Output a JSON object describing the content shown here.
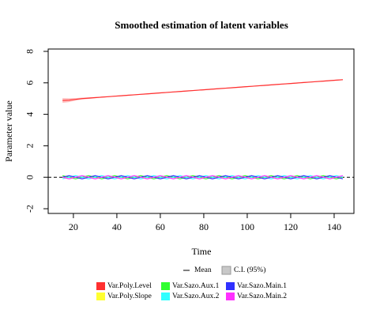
{
  "chart_data": {
    "type": "line",
    "title": "Smoothed estimation of latent variables",
    "xlabel": "Time",
    "ylabel": "Parameter value",
    "xlim": [
      8.4,
      149.1
    ],
    "xticks": [
      20,
      40,
      60,
      80,
      100,
      120,
      140
    ],
    "ylim": [
      -2.3,
      8.15
    ],
    "yticks": [
      -2,
      0,
      2,
      4,
      6,
      8
    ],
    "hline": 0,
    "mean_label": "Mean",
    "ci_label": "C.I. (95%)",
    "ci_color": "#c8c8c8",
    "x": [
      15,
      18,
      21,
      24,
      27,
      30,
      33,
      36,
      39,
      42,
      45,
      48,
      51,
      54,
      57,
      60,
      63,
      66,
      69,
      72,
      75,
      78,
      81,
      84,
      87,
      90,
      93,
      96,
      99,
      102,
      105,
      108,
      111,
      114,
      117,
      120,
      123,
      126,
      129,
      132,
      135,
      138,
      141,
      144
    ],
    "series": [
      {
        "name": "Var.Poly.Level",
        "color": "#ff3030",
        "values": [
          4.88,
          4.9,
          4.95,
          5.0,
          5.03,
          5.06,
          5.09,
          5.12,
          5.15,
          5.18,
          5.21,
          5.24,
          5.27,
          5.3,
          5.33,
          5.36,
          5.39,
          5.42,
          5.45,
          5.48,
          5.51,
          5.54,
          5.57,
          5.6,
          5.63,
          5.66,
          5.69,
          5.72,
          5.75,
          5.78,
          5.81,
          5.84,
          5.87,
          5.9,
          5.93,
          5.96,
          5.99,
          6.02,
          6.05,
          6.08,
          6.11,
          6.14,
          6.17,
          6.2
        ],
        "ci_halfwidth": [
          0.15,
          0.12,
          0.08,
          0.06,
          0.05,
          0.04,
          0.03,
          0.03,
          0.03,
          0.03,
          0.03,
          0.03,
          0.03,
          0.03,
          0.03,
          0.03,
          0.03,
          0.03,
          0.03,
          0.03,
          0.03,
          0.03,
          0.03,
          0.03,
          0.03,
          0.03,
          0.03,
          0.03,
          0.03,
          0.03,
          0.03,
          0.03,
          0.03,
          0.03,
          0.03,
          0.03,
          0.03,
          0.03,
          0.03,
          0.03,
          0.03,
          0.03,
          0.03,
          0.03
        ]
      },
      {
        "name": "Var.Poly.Slope",
        "color": "#ffff30",
        "values": [
          0,
          0,
          0,
          0,
          0,
          0,
          0,
          0,
          0,
          0,
          0,
          0,
          0,
          0,
          0,
          0,
          0,
          0,
          0,
          0,
          0,
          0,
          0,
          0,
          0,
          0,
          0,
          0,
          0,
          0,
          0,
          0,
          0,
          0,
          0,
          0,
          0,
          0,
          0,
          0,
          0,
          0,
          0,
          0
        ]
      },
      {
        "name": "Var.Sazo.Aux.1",
        "color": "#30ff30",
        "values": [
          0.1,
          0,
          -0.1,
          0,
          0.1,
          0,
          -0.1,
          0,
          0.1,
          0,
          -0.1,
          0,
          0.1,
          0,
          -0.1,
          0,
          0.1,
          0,
          -0.1,
          0,
          0.1,
          0,
          -0.1,
          0,
          0.1,
          0,
          -0.1,
          0,
          0.1,
          0,
          -0.1,
          0,
          0.1,
          0,
          -0.1,
          0,
          0.1,
          0,
          -0.1,
          0,
          0.1,
          0,
          -0.1,
          0
        ]
      },
      {
        "name": "Var.Sazo.Aux.2",
        "color": "#30ffff",
        "values": [
          -0.1,
          0,
          0.1,
          0,
          -0.1,
          0,
          0.1,
          0,
          -0.1,
          0,
          0.1,
          0,
          -0.1,
          0,
          0.1,
          0,
          -0.1,
          0,
          0.1,
          0,
          -0.1,
          0,
          0.1,
          0,
          -0.1,
          0,
          0.1,
          0,
          -0.1,
          0,
          0.1,
          0,
          -0.1,
          0,
          0.1,
          0,
          -0.1,
          0,
          0.1,
          0,
          -0.1,
          0,
          0.1,
          0
        ]
      },
      {
        "name": "Var.Sazo.Main.1",
        "color": "#3030ff",
        "values": [
          0,
          0.1,
          0,
          -0.1,
          0,
          0.1,
          0,
          -0.1,
          0,
          0.1,
          0,
          -0.1,
          0,
          0.1,
          0,
          -0.1,
          0,
          0.1,
          0,
          -0.1,
          0,
          0.1,
          0,
          -0.1,
          0,
          0.1,
          0,
          -0.1,
          0,
          0.1,
          0,
          -0.1,
          0,
          0.1,
          0,
          -0.1,
          0,
          0.1,
          0,
          -0.1,
          0,
          0.1,
          0,
          -0.1
        ]
      },
      {
        "name": "Var.Sazo.Main.2",
        "color": "#ff30ff",
        "values": [
          0,
          -0.1,
          0,
          0.1,
          0,
          -0.1,
          0,
          0.1,
          0,
          -0.1,
          0,
          0.1,
          0,
          -0.1,
          0,
          0.1,
          0,
          -0.1,
          0,
          0.1,
          0,
          -0.1,
          0,
          0.1,
          0,
          -0.1,
          0,
          0.1,
          0,
          -0.1,
          0,
          0.1,
          0,
          -0.1,
          0,
          0.1,
          0,
          -0.1,
          0,
          0.1,
          0,
          -0.1,
          0,
          0.1
        ]
      }
    ]
  }
}
